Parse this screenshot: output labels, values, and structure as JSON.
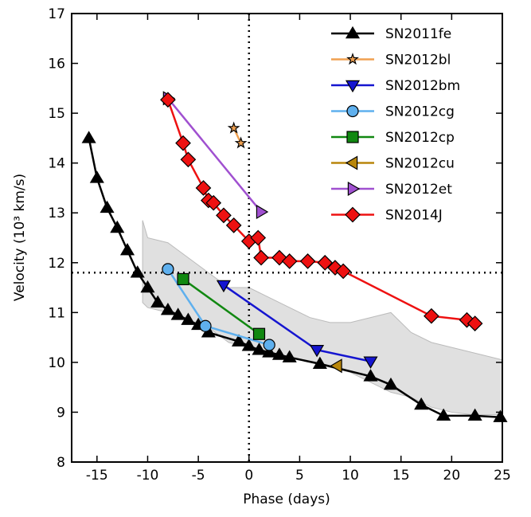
{
  "chart_data": {
    "type": "line",
    "xlabel": "Phase (days)",
    "ylabel": "Velocity (10³ km/s)",
    "xlim": [
      -17.5,
      25
    ],
    "ylim": [
      8,
      17
    ],
    "xticks": [
      -15,
      -10,
      -5,
      0,
      5,
      10,
      15,
      20,
      25
    ],
    "yticks": [
      8,
      9,
      10,
      11,
      12,
      13,
      14,
      15,
      16,
      17
    ],
    "vline": 0,
    "hline": 11.8,
    "legend": "upper right",
    "band": {
      "color": "#e0e0e0",
      "x": [
        -10.5,
        -10,
        -8,
        -6,
        -4,
        -2,
        0,
        2,
        4,
        6,
        8,
        10,
        12,
        14,
        16,
        18,
        20,
        22,
        25
      ],
      "upper": [
        12.85,
        12.5,
        12.4,
        12.1,
        11.8,
        11.5,
        11.5,
        11.3,
        11.1,
        10.9,
        10.8,
        10.8,
        10.9,
        11.0,
        10.6,
        10.4,
        10.3,
        10.2,
        10.05
      ],
      "lower": [
        11.2,
        11.1,
        11.0,
        10.85,
        10.7,
        10.4,
        10.3,
        10.2,
        10.1,
        10.0,
        9.9,
        9.8,
        9.6,
        9.4,
        9.3,
        9.1,
        9.0,
        8.95,
        8.95
      ]
    },
    "series": [
      {
        "name": "SN2011fe",
        "color": "#000000",
        "marker": "triangle-up",
        "x": [
          -15.8,
          -15,
          -14,
          -13,
          -12,
          -11,
          -10,
          -9,
          -8,
          -7,
          -6,
          -5,
          -4,
          -1,
          0,
          1,
          2,
          3,
          4,
          7,
          12,
          14,
          17,
          19.2,
          22.3,
          24.8
        ],
        "values": [
          14.5,
          13.7,
          13.1,
          12.7,
          12.25,
          11.8,
          11.5,
          11.2,
          11.05,
          10.95,
          10.85,
          10.75,
          10.6,
          10.42,
          10.33,
          10.25,
          10.2,
          10.15,
          10.1,
          9.97,
          9.72,
          9.55,
          9.15,
          8.93,
          8.93,
          8.9
        ]
      },
      {
        "name": "SN2012bl",
        "color": "#f0a050",
        "marker": "star",
        "x": [
          -1.5,
          -0.8
        ],
        "values": [
          14.7,
          14.4
        ]
      },
      {
        "name": "SN2012bm",
        "color": "#1515d0",
        "marker": "triangle-down",
        "x": [
          -2.5,
          6.7,
          12
        ],
        "values": [
          11.55,
          10.25,
          10.02
        ]
      },
      {
        "name": "SN2012cg",
        "color": "#5fb0ee",
        "marker": "circle",
        "x": [
          -8,
          -4.3,
          2
        ],
        "values": [
          11.87,
          10.73,
          10.35
        ]
      },
      {
        "name": "SN2012cp",
        "color": "#118811",
        "marker": "square",
        "x": [
          -6.5,
          1
        ],
        "values": [
          11.67,
          10.57
        ]
      },
      {
        "name": "SN2012cu",
        "color": "#b8860b",
        "marker": "triangle-left",
        "x": [
          8.7
        ],
        "values": [
          9.93
        ]
      },
      {
        "name": "SN2012et",
        "color": "#a050d0",
        "marker": "triangle-right",
        "x": [
          -8,
          1.2
        ],
        "values": [
          15.3,
          13.02
        ]
      },
      {
        "name": "SN2014J",
        "color": "#ee1111",
        "marker": "diamond",
        "x": [
          -8,
          -6.5,
          -6,
          -4.5,
          -4,
          -3.5,
          -2.5,
          -1.5,
          0,
          0.9,
          1.2,
          3,
          4,
          5.8,
          7.5,
          8.5,
          9.3,
          18,
          21.5,
          22.3
        ],
        "values": [
          15.27,
          14.4,
          14.07,
          13.5,
          13.25,
          13.2,
          12.95,
          12.75,
          12.43,
          12.5,
          12.1,
          12.1,
          12.03,
          12.03,
          12.0,
          11.9,
          11.83,
          10.93,
          10.85,
          10.78
        ]
      }
    ]
  }
}
